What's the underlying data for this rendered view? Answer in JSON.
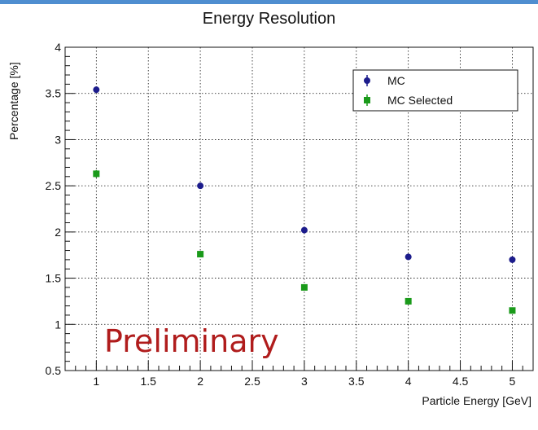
{
  "chart_data": {
    "type": "scatter",
    "title": "Energy Resolution",
    "xlabel": "Particle Energy [GeV]",
    "ylabel": "Percentage [%]",
    "xlim": [
      0.7,
      5.2
    ],
    "ylim": [
      0.5,
      4.0
    ],
    "x_ticks": [
      "1",
      "1.5",
      "2",
      "2.5",
      "3",
      "3.5",
      "4",
      "4.5",
      "5"
    ],
    "y_ticks": [
      "0.5",
      "1",
      "1.5",
      "2",
      "2.5",
      "3",
      "3.5",
      "4"
    ],
    "grid": true,
    "legend_position": "top-right",
    "series": [
      {
        "name": "MC",
        "marker": "circle",
        "color": "#1c1c8c",
        "x": [
          1,
          2,
          3,
          4,
          5
        ],
        "y": [
          3.54,
          2.5,
          2.02,
          1.73,
          1.7
        ],
        "yerr": [
          0.03,
          0.02,
          0.02,
          0.02,
          0.02
        ]
      },
      {
        "name": "MC Selected",
        "marker": "square",
        "color": "#1a9a1a",
        "x": [
          1,
          2,
          3,
          4,
          5
        ],
        "y": [
          2.63,
          1.76,
          1.4,
          1.25,
          1.15
        ],
        "yerr": [
          0.04,
          0.02,
          0.02,
          0.02,
          0.02
        ]
      }
    ],
    "annotation": {
      "text": "Preliminary",
      "color": "#b01c1c"
    }
  }
}
